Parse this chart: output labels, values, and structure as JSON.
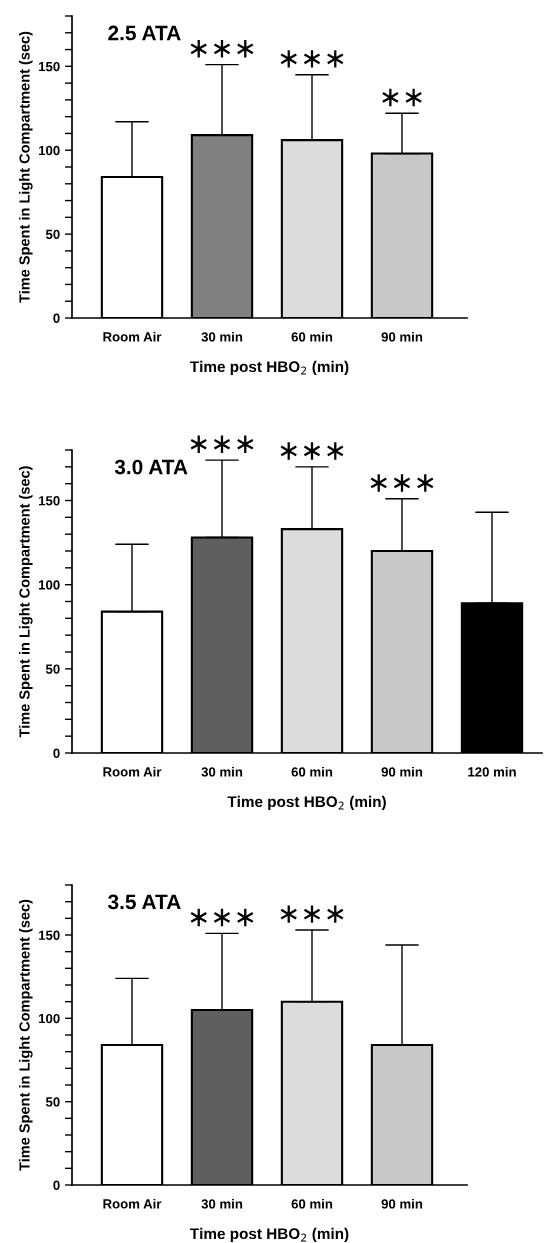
{
  "chart_data": [
    {
      "type": "bar",
      "title": "2.5 ATA",
      "xlabel": "Time post HBO$_{2}$ (min)",
      "ylabel": "Time Spent in Light Compartment (sec)",
      "categories": [
        "Room Air",
        "30 min",
        "60 min",
        "90 min"
      ],
      "values": [
        84,
        109,
        106,
        98
      ],
      "errors": [
        [
          84,
          117
        ],
        [
          109,
          151
        ],
        [
          106,
          145
        ],
        [
          98,
          122
        ]
      ],
      "colors": [
        "#ffffff",
        "#808080",
        "#dcdcdc",
        "#c8c8c8"
      ],
      "ylim": [
        0,
        180
      ],
      "yticks": [
        0,
        {
          "value": 10,
          "label": null
        },
        {
          "value": 20,
          "label": null
        },
        {
          "value": 30,
          "label": null
        },
        {
          "value": 40,
          "label": null
        },
        50,
        {
          "value": 60,
          "label": null
        },
        {
          "value": 70,
          "label": null
        },
        {
          "value": 80,
          "label": null
        },
        {
          "value": 90,
          "label": null
        },
        100,
        {
          "value": 110,
          "label": null
        },
        {
          "value": 120,
          "label": null
        },
        {
          "value": 130,
          "label": null
        },
        {
          "value": 140,
          "label": null
        },
        150,
        {
          "value": 160,
          "label": null
        },
        {
          "value": 170,
          "label": null
        },
        {
          "value": 180,
          "label": null
        }
      ],
      "value_labels": [
        null,
        "∗∗∗",
        "∗∗∗",
        "∗∗"
      ]
    },
    {
      "type": "bar",
      "title": "3.0 ATA",
      "xlabel": "Time post HBO$_{2}$ (min)",
      "ylabel": "Time Spent in Light Compartment (sec)",
      "categories": [
        "Room Air",
        "30 min",
        "60 min",
        "90 min",
        "120 min"
      ],
      "values": [
        84,
        128,
        133,
        120,
        89
      ],
      "errors": [
        [
          84,
          124
        ],
        [
          128,
          174
        ],
        [
          133,
          170
        ],
        [
          120,
          151
        ],
        [
          89,
          143
        ]
      ],
      "colors": [
        "#ffffff",
        "#5f5f5f",
        "#dcdcdc",
        "#c8c8c8",
        "#000000"
      ],
      "ylim": [
        0,
        180
      ],
      "yticks": [
        0,
        {
          "value": 10,
          "label": null
        },
        {
          "value": 20,
          "label": null
        },
        {
          "value": 30,
          "label": null
        },
        {
          "value": 40,
          "label": null
        },
        50,
        {
          "value": 60,
          "label": null
        },
        {
          "value": 70,
          "label": null
        },
        {
          "value": 80,
          "label": null
        },
        {
          "value": 90,
          "label": null
        },
        100,
        {
          "value": 110,
          "label": null
        },
        {
          "value": 120,
          "label": null
        },
        {
          "value": 130,
          "label": null
        },
        {
          "value": 140,
          "label": null
        },
        150,
        {
          "value": 160,
          "label": null
        },
        {
          "value": 170,
          "label": null
        },
        {
          "value": 180,
          "label": null
        }
      ],
      "value_labels": [
        null,
        "∗∗∗",
        "∗∗∗",
        "∗∗∗",
        null
      ]
    },
    {
      "type": "bar",
      "title": "3.5 ATA",
      "xlabel": "Time post HBO$_{2}$ (min)",
      "ylabel": "Time Spent in Light Compartment (sec)",
      "categories": [
        "Room Air",
        "30 min",
        "60 min",
        "90 min"
      ],
      "values": [
        84,
        105,
        110,
        84
      ],
      "errors": [
        [
          84,
          124
        ],
        [
          105,
          151
        ],
        [
          110,
          153
        ],
        [
          84,
          144
        ]
      ],
      "colors": [
        "#ffffff",
        "#5f5f5f",
        "#dcdcdc",
        "#c8c8c8"
      ],
      "ylim": [
        0,
        180
      ],
      "yticks": [
        0,
        {
          "value": 10,
          "label": null
        },
        {
          "value": 20,
          "label": null
        },
        {
          "value": 30,
          "label": null
        },
        {
          "value": 40,
          "label": null
        },
        50,
        {
          "value": 60,
          "label": null
        },
        {
          "value": 70,
          "label": null
        },
        {
          "value": 80,
          "label": null
        },
        {
          "value": 90,
          "label": null
        },
        100,
        {
          "value": 110,
          "label": null
        },
        {
          "value": 120,
          "label": null
        },
        {
          "value": 130,
          "label": null
        },
        {
          "value": 140,
          "label": null
        },
        150,
        {
          "value": 160,
          "label": null
        },
        {
          "value": 170,
          "label": null
        },
        {
          "value": 180,
          "label": null
        }
      ],
      "value_labels": [
        null,
        "∗∗∗",
        "∗∗∗",
        null
      ]
    }
  ]
}
